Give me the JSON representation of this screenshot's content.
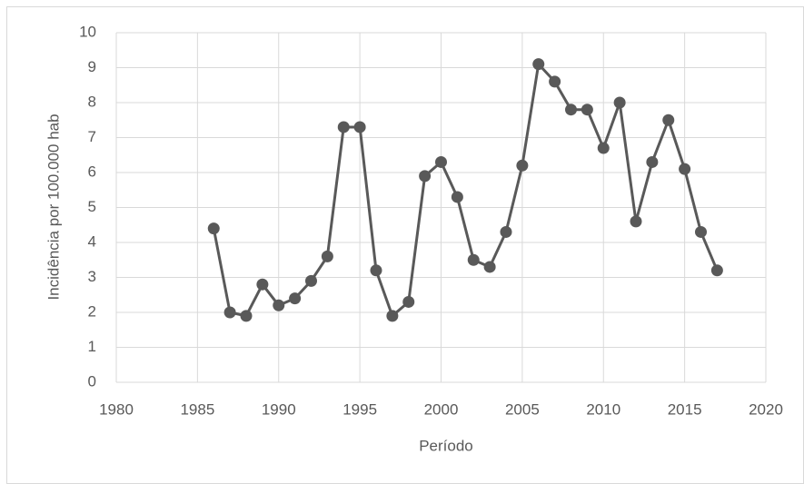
{
  "chart_data": {
    "type": "line",
    "x_label": "Período",
    "y_label": "Incidência por 100.000 hab",
    "x": [
      1986,
      1987,
      1988,
      1989,
      1990,
      1991,
      1992,
      1993,
      1994,
      1995,
      1996,
      1997,
      1998,
      1999,
      2000,
      2001,
      2002,
      2003,
      2004,
      2005,
      2006,
      2007,
      2008,
      2009,
      2010,
      2011,
      2012,
      2013,
      2014,
      2015,
      2016,
      2017
    ],
    "values": [
      4.4,
      2.0,
      1.9,
      2.8,
      2.2,
      2.4,
      2.9,
      3.6,
      7.3,
      7.3,
      3.2,
      1.9,
      2.3,
      5.9,
      6.3,
      5.3,
      3.5,
      3.3,
      4.3,
      6.2,
      9.1,
      8.6,
      7.8,
      7.8,
      6.7,
      8.0,
      4.6,
      6.3,
      7.5,
      6.1,
      4.3,
      3.2
    ],
    "color": "#595959",
    "xlim": [
      1980,
      2020
    ],
    "xticks": [
      1980,
      1985,
      1990,
      1995,
      2000,
      2005,
      2010,
      2015,
      2020
    ],
    "ylim": [
      0,
      10
    ],
    "yticks": [
      0,
      1,
      2,
      3,
      4,
      5,
      6,
      7,
      8,
      9,
      10
    ],
    "grid": true
  }
}
